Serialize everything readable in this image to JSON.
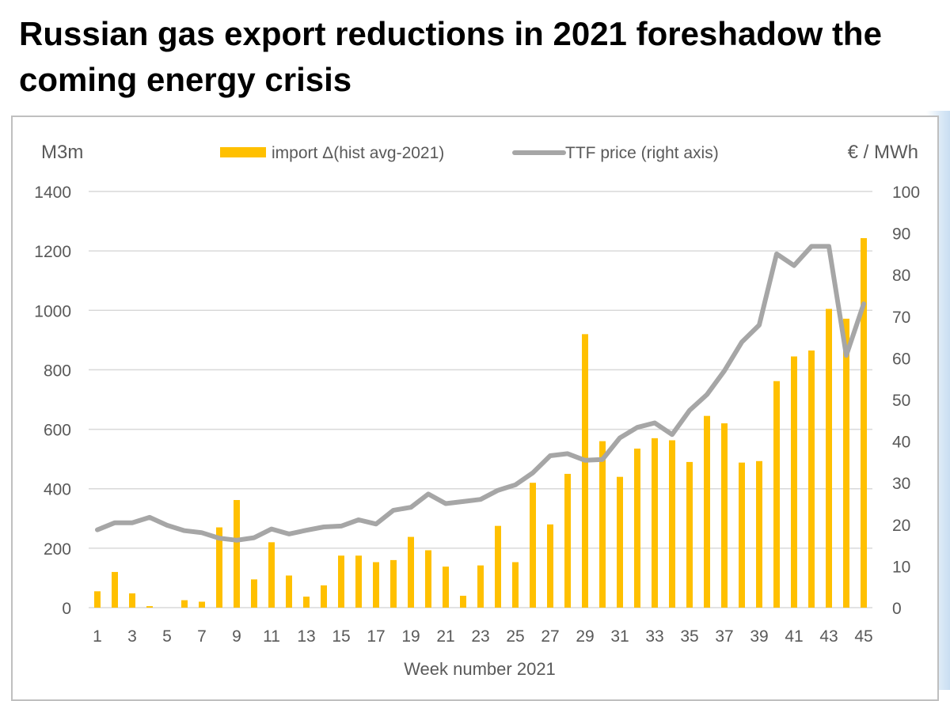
{
  "title": "Russian gas export reductions in 2021 foreshadow the coming energy crisis",
  "colors": {
    "bars": "#FFC000",
    "line": "#A6A6A6",
    "grid": "#D9D9D9",
    "text": "#595959"
  },
  "chart_data": {
    "type": "bar+line",
    "title": "Russian gas export reductions in 2021 foreshadow the coming energy crisis",
    "xlabel": "Week number 2021",
    "ylabel_left": "M3m",
    "ylabel_right": "€ / MWh",
    "ylim_left": [
      0,
      1400
    ],
    "ylim_right": [
      0,
      100
    ],
    "yticks_left": [
      0,
      200,
      400,
      600,
      800,
      1000,
      1200,
      1400
    ],
    "yticks_right": [
      0,
      10,
      20,
      30,
      40,
      50,
      60,
      70,
      80,
      90,
      100
    ],
    "x": [
      1,
      2,
      3,
      4,
      5,
      6,
      7,
      8,
      9,
      10,
      11,
      12,
      13,
      14,
      15,
      16,
      17,
      18,
      19,
      20,
      21,
      22,
      23,
      24,
      25,
      26,
      27,
      28,
      29,
      30,
      31,
      32,
      33,
      34,
      35,
      36,
      37,
      38,
      39,
      40,
      41,
      42,
      43,
      44,
      45
    ],
    "xtick_labels": [
      "1",
      "3",
      "5",
      "7",
      "9",
      "11",
      "13",
      "15",
      "17",
      "19",
      "21",
      "23",
      "25",
      "27",
      "29",
      "31",
      "33",
      "35",
      "37",
      "39",
      "41",
      "43",
      "45"
    ],
    "grid": true,
    "legend_position": "top-center",
    "series": [
      {
        "name": "import Δ(hist avg-2021)",
        "type": "bar",
        "axis": "left",
        "values": [
          55,
          120,
          48,
          5,
          0,
          25,
          20,
          270,
          362,
          95,
          220,
          108,
          37,
          75,
          175,
          175,
          153,
          160,
          238,
          193,
          138,
          40,
          142,
          275,
          153,
          420,
          280,
          450,
          920,
          560,
          440,
          535,
          570,
          563,
          490,
          645,
          620,
          488,
          493,
          762,
          845,
          865,
          1005,
          972,
          1243
        ]
      },
      {
        "name": "TTF price (right axis)",
        "type": "line",
        "axis": "right",
        "values": [
          18.7,
          20.4,
          20.4,
          21.7,
          19.8,
          18.5,
          18,
          16.7,
          16.2,
          16.8,
          18.9,
          17.7,
          18.6,
          19.4,
          19.6,
          21.1,
          20.1,
          23.4,
          24.1,
          27.3,
          25,
          25.5,
          26,
          28.2,
          29.5,
          32.4,
          36.5,
          37,
          35.4,
          35.6,
          40.8,
          43.3,
          44.4,
          41.6,
          47.4,
          51.2,
          56.9,
          63.8,
          67.9,
          85,
          82.2,
          86.8,
          86.8,
          60.6,
          73
        ]
      }
    ]
  }
}
